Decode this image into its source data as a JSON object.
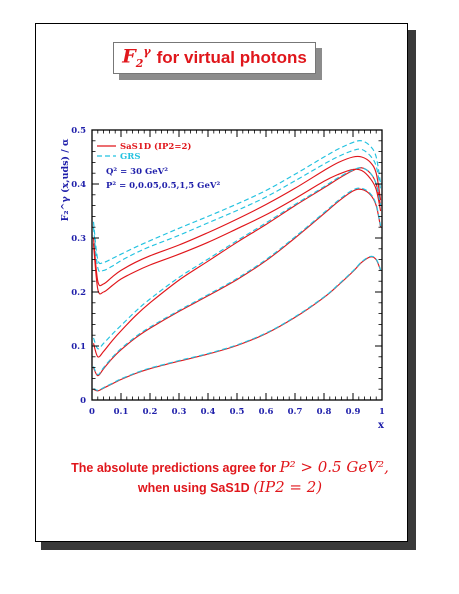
{
  "slide": {
    "title_symbol": "F",
    "title_sub": "2",
    "title_sup": "γ",
    "title_text": "for virtual photons",
    "caption_line1_text": "The absolute predictions agree for",
    "caption_line1_math": "P² > 0.5 GeV²,",
    "caption_line2_text": "when using SaS1D",
    "caption_line2_math": "(IP2 = 2)"
  },
  "colors": {
    "red": "#e0161b",
    "cyan": "#22c2e0",
    "blue": "#1f1faa"
  },
  "chart_data": {
    "type": "line",
    "xlabel": "x",
    "ylabel": "F₂^γ (x,uds) / α",
    "xlim": [
      0,
      1
    ],
    "ylim": [
      0,
      0.5
    ],
    "xticks": [
      0,
      0.1,
      0.2,
      0.3,
      0.4,
      0.5,
      0.6,
      0.7,
      0.8,
      0.9,
      1
    ],
    "xtick_labels": [
      "0",
      "0.1",
      "0.2",
      "0.3",
      "0.4",
      "0.5",
      "0.6",
      "0.7",
      "0.8",
      "0.9",
      "1"
    ],
    "yticks": [
      0,
      0.1,
      0.2,
      0.3,
      0.4,
      0.5
    ],
    "ytick_labels": [
      "0",
      "0.1",
      "0.2",
      "0.3",
      "0.4",
      "0.5"
    ],
    "legend": [
      {
        "label": "SaS1D (IP2=2)",
        "style": "solid",
        "color": "#e0161b"
      },
      {
        "label": "GRS",
        "style": "dashed",
        "color": "#22c2e0"
      }
    ],
    "annotations": [
      "Q² = 30 GeV²",
      "P² = 0,0.05,0.5,1,5 GeV²"
    ],
    "x": [
      0.005,
      0.02,
      0.04,
      0.07,
      0.1,
      0.15,
      0.2,
      0.3,
      0.4,
      0.5,
      0.6,
      0.7,
      0.8,
      0.85,
      0.9,
      0.93,
      0.96,
      0.98,
      0.995
    ],
    "series": [
      {
        "name": "SaS1D (IP2=2)",
        "style": "solid",
        "color": "#e0161b",
        "values": [
          0.3,
          0.22,
          0.215,
          0.228,
          0.24,
          0.255,
          0.267,
          0.287,
          0.31,
          0.335,
          0.362,
          0.392,
          0.425,
          0.44,
          0.45,
          0.45,
          0.44,
          0.42,
          0.37
        ]
      },
      {
        "style": "solid",
        "color": "#e0161b",
        "values": [
          0.29,
          0.205,
          0.2,
          0.212,
          0.224,
          0.238,
          0.25,
          0.27,
          0.292,
          0.317,
          0.343,
          0.373,
          0.405,
          0.418,
          0.427,
          0.425,
          0.41,
          0.39,
          0.35
        ]
      },
      {
        "style": "solid",
        "color": "#e0161b",
        "values": [
          0.105,
          0.08,
          0.09,
          0.11,
          0.128,
          0.156,
          0.18,
          0.222,
          0.257,
          0.292,
          0.325,
          0.36,
          0.393,
          0.41,
          0.425,
          0.43,
          0.42,
          0.4,
          0.36
        ]
      },
      {
        "style": "solid",
        "color": "#e0161b",
        "values": [
          0.06,
          0.045,
          0.058,
          0.077,
          0.093,
          0.115,
          0.133,
          0.164,
          0.193,
          0.223,
          0.258,
          0.3,
          0.345,
          0.368,
          0.387,
          0.39,
          0.38,
          0.36,
          0.32
        ]
      },
      {
        "style": "solid",
        "color": "#e0161b",
        "values": [
          0.02,
          0.017,
          0.022,
          0.03,
          0.038,
          0.049,
          0.058,
          0.072,
          0.085,
          0.101,
          0.123,
          0.153,
          0.19,
          0.213,
          0.238,
          0.255,
          0.265,
          0.26,
          0.24
        ]
      },
      {
        "name": "GRS",
        "style": "dashed",
        "color": "#22c2e0",
        "values": [
          0.33,
          0.26,
          0.255,
          0.262,
          0.27,
          0.283,
          0.295,
          0.318,
          0.34,
          0.363,
          0.388,
          0.418,
          0.45,
          0.465,
          0.477,
          0.48,
          0.47,
          0.45,
          0.4
        ]
      },
      {
        "style": "dashed",
        "color": "#22c2e0",
        "values": [
          0.32,
          0.245,
          0.24,
          0.248,
          0.258,
          0.272,
          0.284,
          0.305,
          0.328,
          0.351,
          0.376,
          0.406,
          0.437,
          0.451,
          0.462,
          0.464,
          0.452,
          0.433,
          0.39
        ]
      },
      {
        "style": "dashed",
        "color": "#22c2e0",
        "values": [
          0.115,
          0.095,
          0.105,
          0.122,
          0.138,
          0.164,
          0.187,
          0.227,
          0.261,
          0.295,
          0.328,
          0.362,
          0.395,
          0.412,
          0.426,
          0.43,
          0.42,
          0.4,
          0.36
        ]
      },
      {
        "style": "dashed",
        "color": "#22c2e0",
        "values": [
          0.062,
          0.047,
          0.06,
          0.079,
          0.095,
          0.117,
          0.135,
          0.166,
          0.195,
          0.225,
          0.26,
          0.302,
          0.347,
          0.37,
          0.389,
          0.392,
          0.382,
          0.362,
          0.322
        ]
      },
      {
        "style": "dashed",
        "color": "#22c2e0",
        "values": [
          0.021,
          0.018,
          0.023,
          0.031,
          0.039,
          0.05,
          0.059,
          0.073,
          0.086,
          0.102,
          0.124,
          0.154,
          0.191,
          0.214,
          0.239,
          0.256,
          0.266,
          0.261,
          0.241
        ]
      }
    ]
  }
}
